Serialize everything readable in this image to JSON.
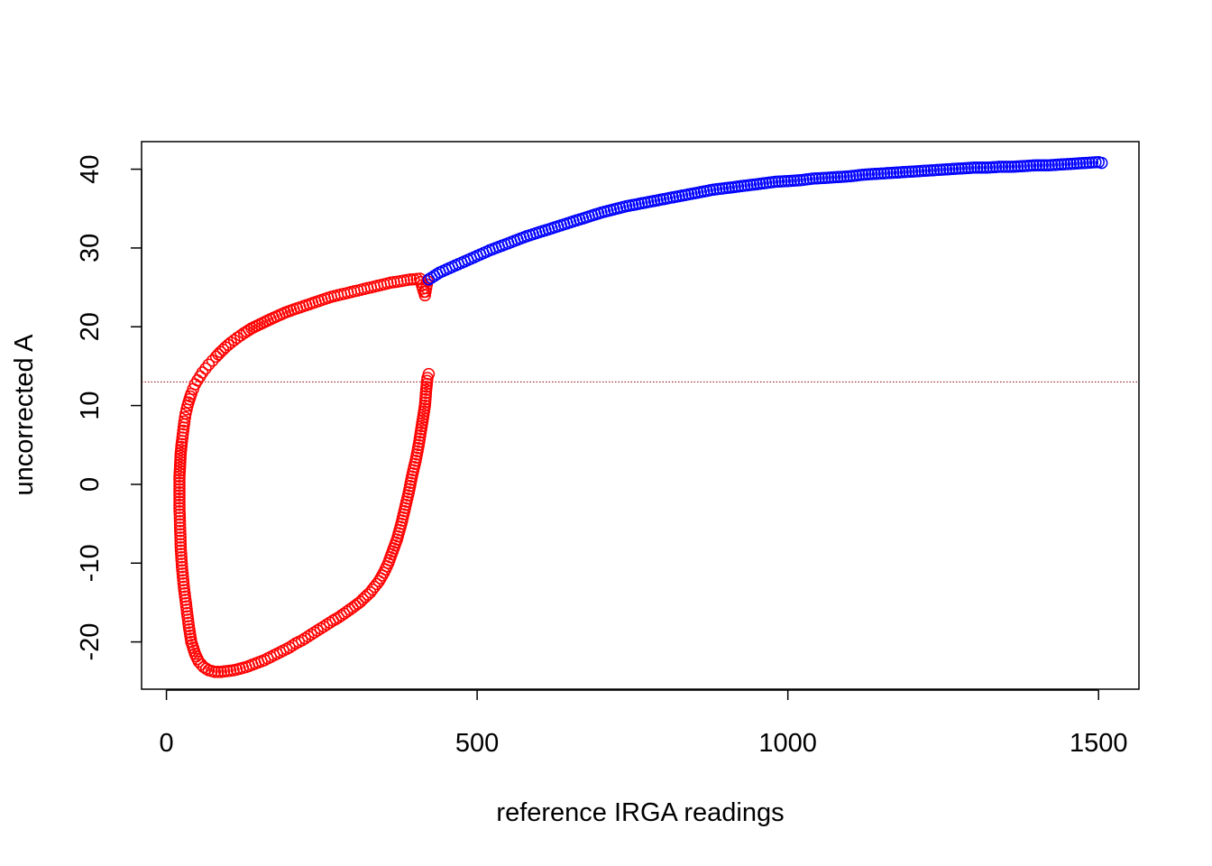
{
  "chart_data": {
    "type": "scatter",
    "title": "",
    "xlabel": "reference IRGA readings",
    "ylabel": "uncorrected A",
    "xlim": [
      -40,
      1565
    ],
    "ylim": [
      -26,
      43.5
    ],
    "x_ticks": [
      0,
      500,
      1000,
      1500
    ],
    "y_ticks": [
      -20,
      -10,
      0,
      10,
      20,
      30,
      40
    ],
    "grid": false,
    "legend": "none",
    "reference_line": {
      "y": 13,
      "style": "dotted",
      "color": "#8b0000"
    },
    "series": [
      {
        "color": "#ff0000",
        "marker": "open-circle",
        "x": [
          422,
          420,
          418,
          416,
          413,
          410,
          406,
          401,
          395,
          390,
          384,
          378,
          371,
          364,
          357,
          350,
          342,
          335,
          328,
          320,
          312,
          304,
          295,
          286,
          277,
          268,
          258,
          248,
          238,
          228,
          218,
          208,
          198,
          188,
          178,
          168,
          158,
          148,
          138,
          128,
          118,
          108,
          98,
          88,
          78,
          68,
          60,
          52,
          46,
          40,
          36,
          32,
          28,
          25,
          23,
          22,
          21,
          21,
          21,
          22,
          23,
          25,
          27,
          29,
          31,
          34,
          37,
          40,
          43,
          46,
          50,
          54,
          58,
          63,
          68,
          74,
          80,
          87,
          95,
          104,
          114,
          125,
          137,
          150,
          163,
          177,
          191,
          205,
          220,
          235,
          250,
          265,
          281,
          297,
          313,
          329,
          345,
          361,
          377,
          393,
          408,
          416,
          420
        ],
        "y": [
          14,
          13.5,
          12,
          10,
          8.5,
          7,
          5,
          3,
          1,
          -1,
          -3,
          -5,
          -7,
          -8.5,
          -10,
          -11.2,
          -12.3,
          -13,
          -13.7,
          -14.3,
          -14.9,
          -15.4,
          -15.9,
          -16.4,
          -16.9,
          -17.3,
          -17.8,
          -18.3,
          -18.8,
          -19.3,
          -19.8,
          -20.2,
          -20.7,
          -21.1,
          -21.5,
          -21.9,
          -22.3,
          -22.6,
          -22.9,
          -23.2,
          -23.4,
          -23.6,
          -23.7,
          -23.8,
          -23.8,
          -23.6,
          -23.2,
          -22.5,
          -21.5,
          -20,
          -18,
          -15.5,
          -13,
          -10.5,
          -8,
          -5.5,
          -3,
          -1,
          1,
          2.5,
          4,
          5.5,
          6.8,
          8,
          9,
          10,
          10.8,
          11.5,
          12.1,
          12.7,
          13.2,
          13.7,
          14.2,
          14.7,
          15.2,
          15.7,
          16.2,
          16.8,
          17.4,
          18,
          18.6,
          19.2,
          19.8,
          20.3,
          20.8,
          21.3,
          21.8,
          22.2,
          22.6,
          23,
          23.4,
          23.8,
          24.1,
          24.4,
          24.7,
          25,
          25.3,
          25.6,
          25.8,
          26,
          26.1,
          24,
          25.8
        ]
      },
      {
        "color": "#0000ff",
        "marker": "open-circle",
        "x": [
          422,
          440,
          460,
          480,
          500,
          520,
          540,
          560,
          580,
          600,
          620,
          640,
          660,
          680,
          700,
          720,
          740,
          760,
          780,
          800,
          820,
          840,
          860,
          880,
          900,
          920,
          940,
          960,
          980,
          1000,
          1020,
          1040,
          1060,
          1080,
          1100,
          1120,
          1140,
          1160,
          1180,
          1200,
          1220,
          1240,
          1260,
          1280,
          1300,
          1320,
          1340,
          1360,
          1380,
          1400,
          1420,
          1440,
          1460,
          1480,
          1500,
          1505
        ],
        "y": [
          26,
          26.9,
          27.6,
          28.3,
          29,
          29.7,
          30.3,
          30.9,
          31.5,
          32,
          32.5,
          33,
          33.5,
          34,
          34.5,
          34.9,
          35.3,
          35.6,
          35.9,
          36.2,
          36.5,
          36.8,
          37.1,
          37.4,
          37.6,
          37.8,
          38,
          38.2,
          38.4,
          38.5,
          38.6,
          38.8,
          38.9,
          39,
          39.1,
          39.3,
          39.4,
          39.5,
          39.6,
          39.7,
          39.8,
          39.9,
          40,
          40.1,
          40.2,
          40.2,
          40.3,
          40.3,
          40.4,
          40.5,
          40.5,
          40.6,
          40.7,
          40.8,
          40.9,
          40.8
        ]
      }
    ]
  }
}
